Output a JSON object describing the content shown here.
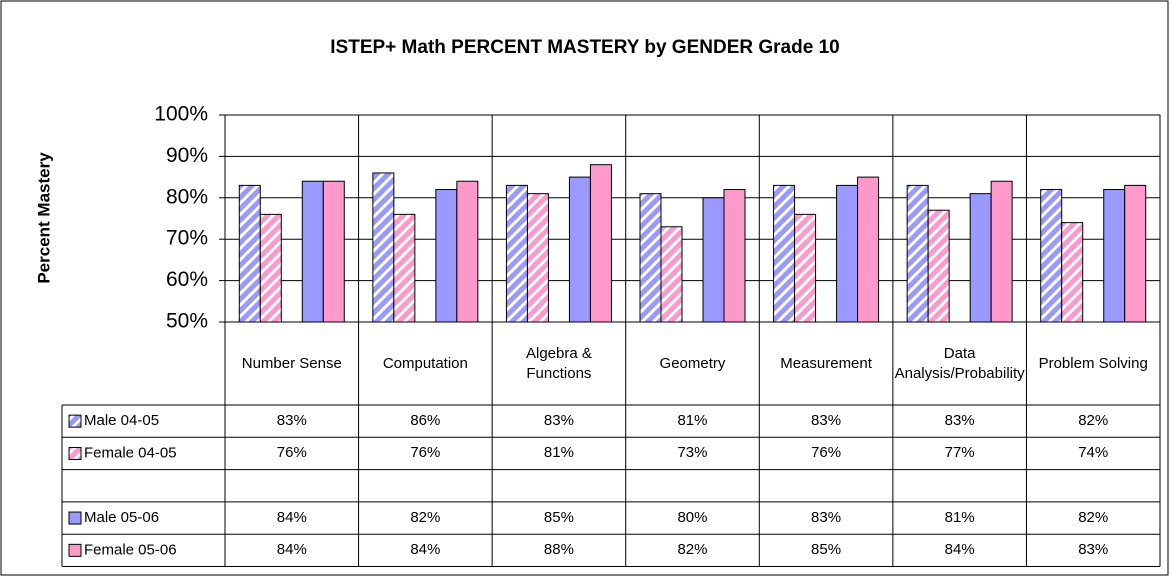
{
  "chart_data": {
    "type": "bar",
    "title": "ISTEP+ Math PERCENT MASTERY by GENDER Grade 10",
    "y_label": "Percent Mastery",
    "categories": [
      "Number Sense",
      "Computation",
      "Algebra & Functions",
      "Geometry",
      "Measurement",
      "Data Analysis/Probability",
      "Problem Solving"
    ],
    "series": [
      {
        "name": "Male 04-05",
        "color": "#9999ff",
        "hatched": true,
        "values": [
          83,
          86,
          83,
          81,
          83,
          83,
          82
        ],
        "value_labels": [
          "83%",
          "86%",
          "83%",
          "81%",
          "83%",
          "83%",
          "82%"
        ]
      },
      {
        "name": "Female 04-05",
        "color": "#ff99cc",
        "hatched": true,
        "values": [
          76,
          76,
          81,
          73,
          76,
          77,
          74
        ],
        "value_labels": [
          "76%",
          "76%",
          "81%",
          "73%",
          "76%",
          "77%",
          "74%"
        ]
      },
      {
        "name": "Male 05-06",
        "color": "#9999ff",
        "hatched": false,
        "values": [
          84,
          82,
          85,
          80,
          83,
          81,
          82
        ],
        "value_labels": [
          "84%",
          "82%",
          "85%",
          "80%",
          "83%",
          "81%",
          "82%"
        ]
      },
      {
        "name": "Female 05-06",
        "color": "#ff99cc",
        "hatched": false,
        "values": [
          84,
          84,
          88,
          82,
          85,
          84,
          83
        ],
        "value_labels": [
          "84%",
          "84%",
          "88%",
          "82%",
          "85%",
          "84%",
          "83%"
        ]
      }
    ],
    "ylim": [
      50,
      100
    ],
    "yticks": [
      {
        "value": 50,
        "label": "50%"
      },
      {
        "value": 60,
        "label": "60%"
      },
      {
        "value": 70,
        "label": "70%"
      },
      {
        "value": 80,
        "label": "80%"
      },
      {
        "value": 90,
        "label": "90%"
      },
      {
        "value": 100,
        "label": "100%"
      }
    ],
    "grid": true
  }
}
